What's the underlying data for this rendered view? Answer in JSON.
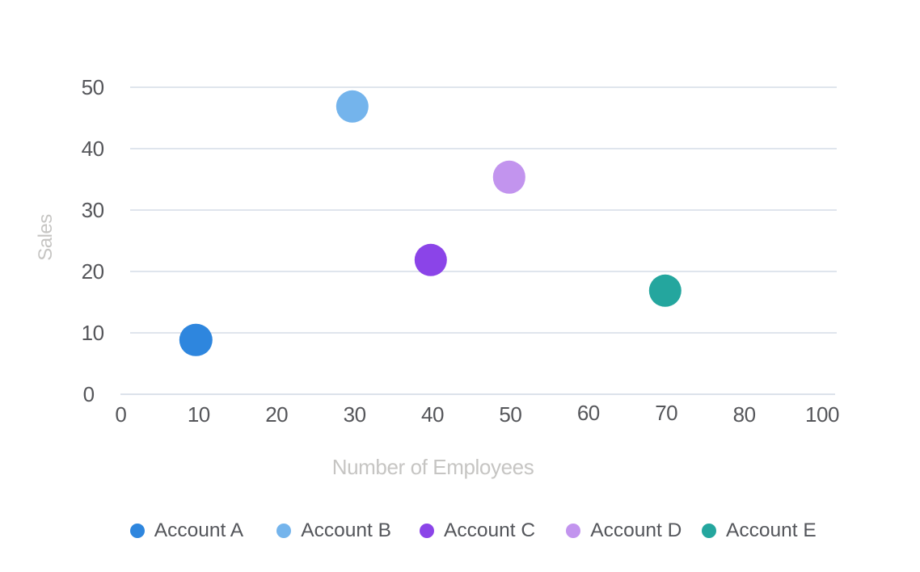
{
  "chart_data": {
    "type": "scatter",
    "title": "",
    "xlabel": "Number of Employees",
    "ylabel": "Sales",
    "xlim": [
      0,
      100
    ],
    "ylim": [
      0,
      50
    ],
    "grid": true,
    "legend_position": "bottom",
    "x_tick_labels": [
      "0",
      "10",
      "20",
      "30",
      "40",
      "50",
      "60",
      "70",
      "80",
      "100"
    ],
    "y_tick_labels": [
      "0",
      "10",
      "20",
      "30",
      "40",
      "50"
    ],
    "series": [
      {
        "name": "Account A",
        "x": 10,
        "y": 9,
        "color": "#2e86de"
      },
      {
        "name": "Account B",
        "x": 30,
        "y": 47,
        "color": "#74b4ec"
      },
      {
        "name": "Account C",
        "x": 40,
        "y": 22,
        "color": "#8b44e8"
      },
      {
        "name": "Account D",
        "x": 50,
        "y": 35.5,
        "color": "#c294ee"
      },
      {
        "name": "Account E",
        "x": 70,
        "y": 17,
        "color": "#24a69e"
      }
    ]
  }
}
